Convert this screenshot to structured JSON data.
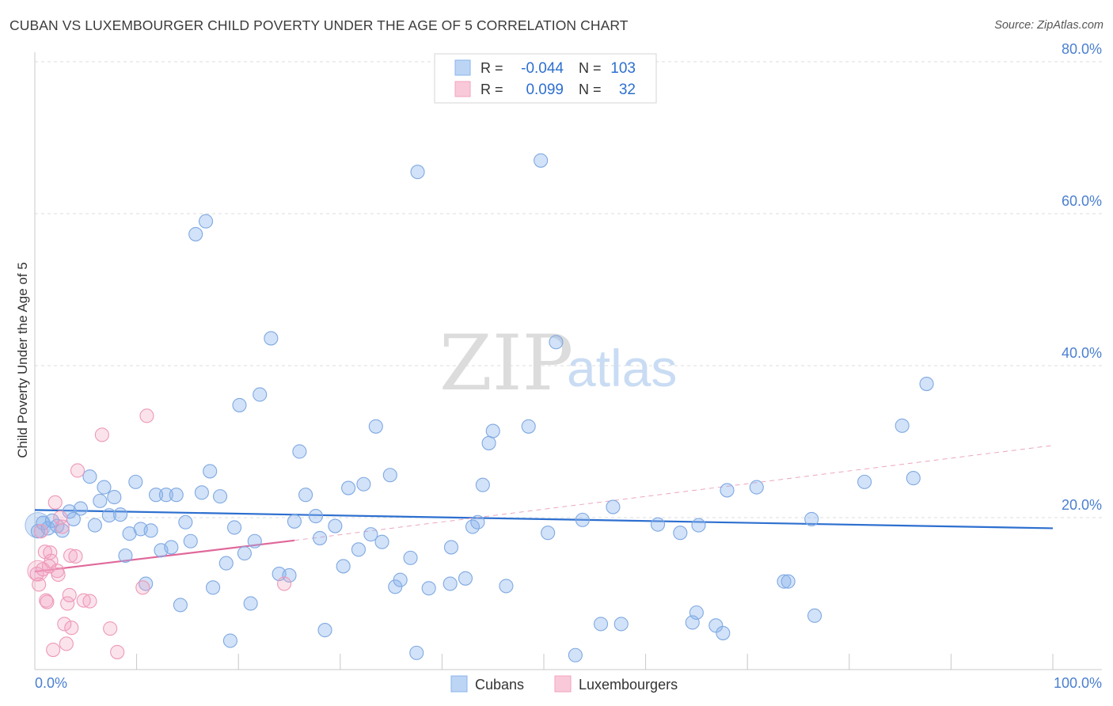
{
  "title": "CUBAN VS LUXEMBOURGER CHILD POVERTY UNDER THE AGE OF 5 CORRELATION CHART",
  "source": "Source: ZipAtlas.com",
  "watermark": {
    "zip": "ZIP",
    "atlas": "atlas"
  },
  "colors": {
    "blue": "#8ab4ec",
    "blue_line": "#2d6fcf",
    "pink": "#f2a3bf",
    "pink_line": "#e0689a",
    "axis_text": "#4a7fd0"
  },
  "legend_top": [
    {
      "r_label": "R =",
      "r_value": "-0.044",
      "n_label": "N =",
      "n_value": "103"
    },
    {
      "r_label": "R =",
      "r_value": "0.099",
      "n_label": "N =",
      "n_value": "32"
    }
  ],
  "chart_data": {
    "type": "scatter",
    "title": "CUBAN VS LUXEMBOURGER CHILD POVERTY UNDER THE AGE OF 5 CORRELATION CHART",
    "xlabel": "",
    "ylabel": "Child Poverty Under the Age of 5",
    "xlim": [
      0,
      100
    ],
    "ylim": [
      0,
      82
    ],
    "x_tick_labels": [
      "0.0%",
      "100.0%"
    ],
    "y_tick_labels": [
      "20.0%",
      "40.0%",
      "60.0%",
      "80.0%"
    ],
    "y_ticks": [
      20,
      40,
      60,
      80
    ],
    "grid": true,
    "legend_position": "bottom-center",
    "series": [
      {
        "name": "Cubans",
        "trend": {
          "x": [
            0,
            100
          ],
          "y": [
            21.0,
            18.6
          ]
        },
        "points": [
          [
            0.3,
            18.2
          ],
          [
            0.8,
            19.3
          ],
          [
            1.3,
            18.6
          ],
          [
            1.7,
            19.6
          ],
          [
            2.2,
            18.9
          ],
          [
            2.7,
            18.3
          ],
          [
            3.4,
            20.8
          ],
          [
            3.8,
            19.8
          ],
          [
            4.5,
            21.2
          ],
          [
            5.4,
            25.4
          ],
          [
            5.9,
            19.0
          ],
          [
            6.4,
            22.2
          ],
          [
            6.8,
            24.0
          ],
          [
            7.3,
            20.3
          ],
          [
            7.8,
            22.7
          ],
          [
            8.4,
            20.4
          ],
          [
            8.9,
            15.0
          ],
          [
            9.3,
            17.9
          ],
          [
            9.9,
            24.7
          ],
          [
            10.4,
            18.5
          ],
          [
            10.9,
            11.3
          ],
          [
            11.4,
            18.3
          ],
          [
            11.9,
            23.0
          ],
          [
            12.4,
            15.7
          ],
          [
            12.9,
            23.0
          ],
          [
            13.4,
            16.1
          ],
          [
            13.9,
            23.0
          ],
          [
            14.3,
            8.5
          ],
          [
            14.8,
            19.4
          ],
          [
            15.3,
            16.9
          ],
          [
            15.8,
            57.3
          ],
          [
            16.4,
            23.3
          ],
          [
            16.8,
            59.0
          ],
          [
            17.2,
            26.1
          ],
          [
            17.5,
            10.8
          ],
          [
            18.2,
            22.8
          ],
          [
            18.8,
            14.0
          ],
          [
            19.2,
            3.8
          ],
          [
            19.6,
            18.7
          ],
          [
            20.1,
            34.8
          ],
          [
            20.6,
            15.3
          ],
          [
            21.2,
            8.7
          ],
          [
            21.6,
            16.9
          ],
          [
            22.1,
            36.2
          ],
          [
            23.2,
            43.6
          ],
          [
            24.0,
            12.6
          ],
          [
            25.0,
            12.4
          ],
          [
            25.5,
            19.5
          ],
          [
            26.0,
            28.7
          ],
          [
            26.6,
            23.0
          ],
          [
            27.6,
            20.2
          ],
          [
            28.0,
            17.3
          ],
          [
            28.5,
            5.2
          ],
          [
            29.5,
            18.9
          ],
          [
            30.3,
            13.6
          ],
          [
            30.8,
            23.9
          ],
          [
            31.8,
            15.8
          ],
          [
            32.3,
            24.4
          ],
          [
            33.0,
            17.8
          ],
          [
            33.5,
            32.0
          ],
          [
            34.1,
            16.8
          ],
          [
            34.9,
            25.6
          ],
          [
            35.4,
            10.9
          ],
          [
            35.9,
            11.8
          ],
          [
            36.9,
            14.7
          ],
          [
            37.5,
            2.2
          ],
          [
            37.6,
            65.5
          ],
          [
            38.7,
            10.7
          ],
          [
            40.8,
            11.3
          ],
          [
            40.9,
            16.1
          ],
          [
            42.3,
            12.0
          ],
          [
            43.0,
            18.8
          ],
          [
            43.5,
            19.4
          ],
          [
            44.0,
            24.3
          ],
          [
            44.6,
            29.8
          ],
          [
            45.0,
            31.4
          ],
          [
            46.3,
            11.0
          ],
          [
            48.5,
            32.0
          ],
          [
            49.7,
            67.0
          ],
          [
            50.4,
            18.0
          ],
          [
            51.2,
            43.1
          ],
          [
            53.1,
            1.9
          ],
          [
            53.8,
            19.7
          ],
          [
            55.6,
            6.0
          ],
          [
            56.8,
            21.4
          ],
          [
            57.6,
            6.0
          ],
          [
            61.2,
            19.1
          ],
          [
            63.4,
            18.0
          ],
          [
            64.6,
            6.2
          ],
          [
            65.0,
            7.5
          ],
          [
            65.2,
            19.0
          ],
          [
            66.9,
            5.8
          ],
          [
            67.6,
            4.8
          ],
          [
            68.0,
            23.6
          ],
          [
            70.9,
            24.0
          ],
          [
            73.6,
            11.6
          ],
          [
            74.0,
            11.6
          ],
          [
            76.3,
            19.8
          ],
          [
            76.6,
            7.1
          ],
          [
            81.5,
            24.7
          ],
          [
            85.2,
            32.1
          ],
          [
            86.3,
            25.2
          ],
          [
            87.6,
            37.6
          ]
        ]
      },
      {
        "name": "Luxembourgers",
        "trend": {
          "x": [
            0,
            25.5
          ],
          "y": [
            12.9,
            17.0
          ]
        },
        "trend_dashed": {
          "x": [
            25.5,
            100
          ],
          "y": [
            17.0,
            29.5
          ]
        },
        "points": [
          [
            0.2,
            12.6
          ],
          [
            0.4,
            11.2
          ],
          [
            0.6,
            18.2
          ],
          [
            0.8,
            13.2
          ],
          [
            1.0,
            15.5
          ],
          [
            1.1,
            9.1
          ],
          [
            1.2,
            8.9
          ],
          [
            1.4,
            13.6
          ],
          [
            1.5,
            15.4
          ],
          [
            1.6,
            14.3
          ],
          [
            1.8,
            2.6
          ],
          [
            2.0,
            22.0
          ],
          [
            2.2,
            13.0
          ],
          [
            2.3,
            12.5
          ],
          [
            2.5,
            20.0
          ],
          [
            2.7,
            18.8
          ],
          [
            2.9,
            6.0
          ],
          [
            3.1,
            3.4
          ],
          [
            3.2,
            8.7
          ],
          [
            3.4,
            9.8
          ],
          [
            3.5,
            15.0
          ],
          [
            3.6,
            5.5
          ],
          [
            4.2,
            26.2
          ],
          [
            4.8,
            9.1
          ],
          [
            5.4,
            9.0
          ],
          [
            6.6,
            30.9
          ],
          [
            7.4,
            5.4
          ],
          [
            8.1,
            2.3
          ],
          [
            10.6,
            10.8
          ],
          [
            11.0,
            33.4
          ],
          [
            24.5,
            11.3
          ],
          [
            4.0,
            14.9
          ]
        ]
      }
    ]
  }
}
